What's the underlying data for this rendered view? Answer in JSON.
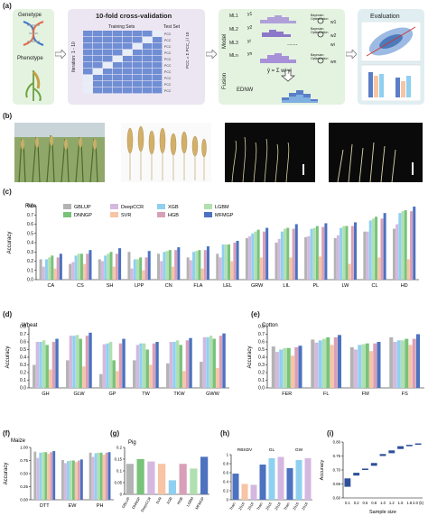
{
  "panel_labels": {
    "a": "(a)",
    "b": "(b)",
    "c": "(c)",
    "d": "(d)",
    "e": "(e)",
    "f": "(f)",
    "g": "(g)",
    "h": "(h)",
    "i": "(i)"
  },
  "workflow": {
    "genotype": "Genetype",
    "phenotype": "Phenotype",
    "cv_title": "10-fold cross-validation",
    "training_sets": "Training Sets",
    "test_set": "Test Set",
    "iteration": "Iteration: 1 - 10",
    "pcc_label": "PCC",
    "pcc_formula": "PCC = Σ PCC_i / 10",
    "model": "Model",
    "fusion": "Fusion",
    "models": [
      "ML1",
      "ML2",
      "ML3",
      "MLn"
    ],
    "ys": [
      "y1",
      "y2",
      "yi",
      "yn"
    ],
    "weights": [
      "w1",
      "w2",
      "wi",
      "wn"
    ],
    "bayes": "Bayesian Optimization",
    "ednw": "EDNW",
    "fusion_formula": "ŷ = Σ wi yi",
    "evaluation": "Evaluation"
  },
  "legend": {
    "items": [
      {
        "name": "GBLUP",
        "color": "#b3b3b3"
      },
      {
        "name": "DeepCCR",
        "color": "#d4b8e0"
      },
      {
        "name": "XGB",
        "color": "#8fd0f0"
      },
      {
        "name": "LGBM",
        "color": "#b0e0b0"
      },
      {
        "name": "DNNGP",
        "color": "#78c27a"
      },
      {
        "name": "SVR",
        "color": "#f7c4a5"
      },
      {
        "name": "HGB",
        "color": "#d8a0b8"
      },
      {
        "name": "MFMGP",
        "color": "#4c72c0"
      }
    ]
  },
  "chart_data": [
    {
      "id": "c",
      "type": "bar",
      "title": "Rice",
      "ylabel": "Accuracy",
      "ylim": [
        0,
        0.8
      ],
      "yticks": [
        0.0,
        0.1,
        0.2,
        0.3,
        0.4,
        0.5,
        0.6,
        0.7,
        0.8
      ],
      "categories": [
        "CA",
        "CS",
        "SH",
        "LPP",
        "CN",
        "FLA",
        "LEL",
        "GRW",
        "LIL",
        "PL",
        "LW",
        "CL",
        "HD"
      ],
      "series": [
        {
          "name": "GBLUP",
          "values": [
            0.22,
            0.17,
            0.22,
            0.3,
            0.28,
            0.24,
            0.28,
            0.45,
            0.4,
            0.46,
            0.45,
            0.52,
            0.55
          ]
        },
        {
          "name": "DeepCCR",
          "values": [
            0.14,
            0.19,
            0.2,
            0.12,
            0.2,
            0.21,
            0.24,
            0.47,
            0.44,
            0.47,
            0.48,
            0.52,
            0.6
          ]
        },
        {
          "name": "XGB",
          "values": [
            0.22,
            0.26,
            0.26,
            0.22,
            0.3,
            0.3,
            0.38,
            0.5,
            0.52,
            0.55,
            0.56,
            0.64,
            0.72
          ]
        },
        {
          "name": "LGBM",
          "values": [
            0.24,
            0.28,
            0.28,
            0.22,
            0.31,
            0.31,
            0.38,
            0.52,
            0.55,
            0.56,
            0.58,
            0.66,
            0.74
          ]
        },
        {
          "name": "DNNGP",
          "values": [
            0.26,
            0.28,
            0.3,
            0.24,
            0.32,
            0.32,
            0.38,
            0.54,
            0.56,
            0.58,
            0.58,
            0.68,
            0.75
          ]
        },
        {
          "name": "SVR",
          "values": [
            0.12,
            0.17,
            0.14,
            0.1,
            0.14,
            0.12,
            0.2,
            0.24,
            0.24,
            0.25,
            0.17,
            0.24,
            0.22
          ]
        },
        {
          "name": "HGB",
          "values": [
            0.24,
            0.28,
            0.28,
            0.24,
            0.32,
            0.32,
            0.4,
            0.52,
            0.55,
            0.57,
            0.58,
            0.66,
            0.74
          ]
        },
        {
          "name": "MFMGP",
          "values": [
            0.28,
            0.32,
            0.34,
            0.31,
            0.35,
            0.36,
            0.42,
            0.56,
            0.6,
            0.61,
            0.62,
            0.72,
            0.79
          ]
        }
      ]
    },
    {
      "id": "d",
      "type": "bar",
      "title": "Wheat",
      "ylabel": "Accuracy",
      "ylim": [
        0,
        0.8
      ],
      "yticks": [
        0.0,
        0.1,
        0.2,
        0.3,
        0.4,
        0.5,
        0.6,
        0.7,
        0.8
      ],
      "categories": [
        "GH",
        "GLW",
        "GP",
        "TW",
        "TKW",
        "GWW"
      ],
      "series": [
        {
          "name": "GBLUP",
          "values": [
            0.3,
            0.36,
            0.18,
            0.36,
            0.32,
            0.34
          ]
        },
        {
          "name": "DeepCCR",
          "values": [
            0.6,
            0.68,
            0.57,
            0.56,
            0.6,
            0.66
          ]
        },
        {
          "name": "XGB",
          "values": [
            0.6,
            0.68,
            0.58,
            0.58,
            0.6,
            0.66
          ]
        },
        {
          "name": "LGBM",
          "values": [
            0.62,
            0.69,
            0.6,
            0.58,
            0.62,
            0.68
          ]
        },
        {
          "name": "DNNGP",
          "values": [
            0.56,
            0.64,
            0.36,
            0.5,
            0.56,
            0.64
          ]
        },
        {
          "name": "SVR",
          "values": [
            0.24,
            0.28,
            0.22,
            0.3,
            0.22,
            0.26
          ]
        },
        {
          "name": "HGB",
          "values": [
            0.6,
            0.68,
            0.58,
            0.58,
            0.62,
            0.68
          ]
        },
        {
          "name": "MFMGP",
          "values": [
            0.64,
            0.72,
            0.64,
            0.6,
            0.65,
            0.71
          ]
        }
      ]
    },
    {
      "id": "e",
      "type": "bar",
      "title": "Cotton",
      "ylabel": "Accuracy",
      "ylim": [
        0,
        0.8
      ],
      "yticks": [
        0.0,
        0.1,
        0.2,
        0.3,
        0.4,
        0.5,
        0.6,
        0.7,
        0.8
      ],
      "categories": [
        "FER",
        "FL",
        "FM",
        "FS"
      ],
      "series": [
        {
          "name": "GBLUP",
          "values": [
            0.54,
            0.63,
            0.53,
            0.66
          ]
        },
        {
          "name": "DeepCCR",
          "values": [
            0.47,
            0.59,
            0.5,
            0.6
          ]
        },
        {
          "name": "XGB",
          "values": [
            0.5,
            0.62,
            0.56,
            0.62
          ]
        },
        {
          "name": "LGBM",
          "values": [
            0.52,
            0.64,
            0.57,
            0.62
          ]
        },
        {
          "name": "DNNGP",
          "values": [
            0.52,
            0.66,
            0.58,
            0.64
          ]
        },
        {
          "name": "SVR",
          "values": [
            0.42,
            0.56,
            0.48,
            0.56
          ]
        },
        {
          "name": "HGB",
          "values": [
            0.53,
            0.66,
            0.58,
            0.64
          ]
        },
        {
          "name": "MFMGP",
          "values": [
            0.55,
            0.69,
            0.6,
            0.7
          ]
        }
      ]
    },
    {
      "id": "f",
      "type": "bar",
      "title": "Maize",
      "ylabel": "Accuracy",
      "ylim": [
        0,
        1.0
      ],
      "yticks": [
        0.0,
        0.25,
        0.5,
        0.75,
        1.0
      ],
      "yticklabels": [
        "0.00",
        "0.25",
        "0.50",
        "0.75",
        "1.00"
      ],
      "categories": [
        "DTT",
        "EW",
        "PH"
      ],
      "series": [
        {
          "name": "GBLUP",
          "values": [
            0.92,
            0.76,
            0.9
          ]
        },
        {
          "name": "DeepCCR",
          "values": [
            0.8,
            0.7,
            0.82
          ]
        },
        {
          "name": "XGB",
          "values": [
            0.9,
            0.74,
            0.89
          ]
        },
        {
          "name": "LGBM",
          "values": [
            0.91,
            0.75,
            0.9
          ]
        },
        {
          "name": "DNNGP",
          "values": [
            0.91,
            0.75,
            0.9
          ]
        },
        {
          "name": "SVR",
          "values": [
            0.88,
            0.72,
            0.86
          ]
        },
        {
          "name": "HGB",
          "values": [
            0.91,
            0.75,
            0.9
          ]
        },
        {
          "name": "MFMGP",
          "values": [
            0.93,
            0.77,
            0.91
          ]
        }
      ]
    },
    {
      "id": "g",
      "type": "bar",
      "title": "Pig",
      "ylabel": "",
      "ylim": [
        0,
        0.2
      ],
      "yticks": [
        0.0,
        0.05,
        0.1,
        0.15,
        0.2
      ],
      "categories": [
        "GBLUP",
        "DNNGP",
        "DeepCCR",
        "SVR",
        "XGB",
        "HGB",
        "LGBM",
        "MFMGP"
      ],
      "values": [
        0.13,
        0.15,
        0.14,
        0.13,
        0.06,
        0.13,
        0.11,
        0.16
      ],
      "colors": [
        "#b3b3b3",
        "#78c27a",
        "#d4b8e0",
        "#f7c4a5",
        "#8fd0f0",
        "#d8a0b8",
        "#b0e0b0",
        "#4c72c0"
      ]
    },
    {
      "id": "h",
      "type": "bar",
      "title": "",
      "ylabel": "",
      "ylim": [
        0,
        1.0
      ],
      "yticks": [
        0.0,
        0.2,
        0.4,
        0.6,
        0.8,
        1.0
      ],
      "groups": [
        "RBSDV",
        "GL",
        "GW"
      ],
      "categories": [
        "Train",
        "2016",
        "2018",
        "Train",
        "2016",
        "2018",
        "Train",
        "2016",
        "2018"
      ],
      "values": [
        0.58,
        0.35,
        0.33,
        0.78,
        0.92,
        0.95,
        0.7,
        0.88,
        0.92
      ],
      "colors": [
        "#4c72c0",
        "#f7c4a5",
        "#d4b8e0",
        "#4c72c0",
        "#8fd0f0",
        "#d4b8e0",
        "#4c72c0",
        "#8fd0f0",
        "#d4b8e0"
      ]
    },
    {
      "id": "i",
      "type": "boxplot",
      "title": "",
      "xlabel": "Sample size",
      "ylabel": "Accuracy",
      "ylim": [
        0.6,
        0.8
      ],
      "yticks": [
        0.6,
        0.65,
        0.7,
        0.75,
        0.8
      ],
      "categories": [
        "0.1",
        "0.2",
        "0.5",
        "0.8",
        "1.0",
        "1.2",
        "1.5",
        "1.8",
        "2.0 (k)"
      ],
      "low": [
        0.64,
        0.68,
        0.7,
        0.715,
        0.75,
        0.76,
        0.775,
        0.785,
        0.79
      ],
      "high": [
        0.67,
        0.69,
        0.705,
        0.725,
        0.757,
        0.77,
        0.785,
        0.79,
        0.795
      ]
    }
  ]
}
